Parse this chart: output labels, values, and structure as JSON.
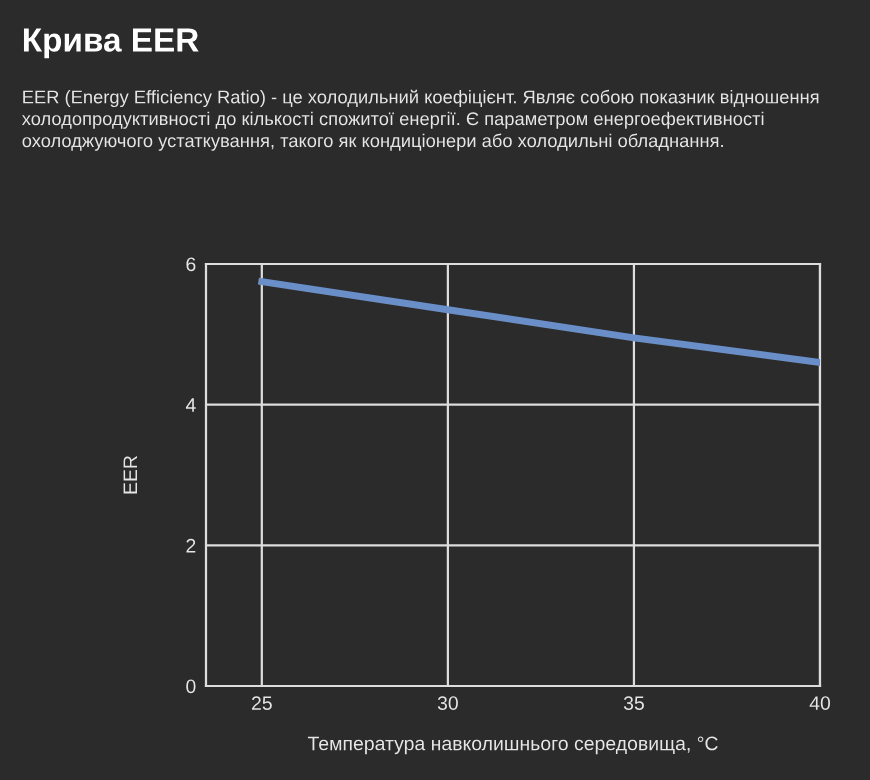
{
  "chart_data": {
    "type": "line",
    "title": "Крива EER",
    "subtitle": "EER (Energy Efficiency Ratio) - це холодильний коефіцієнт. Являє собою показник відношення холодопродуктивності до кількості спожитої енергії. Є параметром енергоефективності охолоджуючого устаткування, такого як кондиціонери або холодильні обладнання.",
    "xlabel": "Температура навколишнього середовища, °C",
    "ylabel": "EER",
    "x": [
      25,
      30,
      35,
      40
    ],
    "series": [
      {
        "color": "#6a8fc8",
        "values": [
          5.75,
          5.35,
          4.95,
          4.6
        ]
      }
    ],
    "xlim": [
      23.5,
      40
    ],
    "ylim": [
      0,
      6
    ],
    "xticks": [
      25,
      30,
      35,
      40
    ],
    "yticks": [
      0,
      2,
      4,
      6
    ],
    "grid": true,
    "marker": "none",
    "line_style": "solid"
  }
}
